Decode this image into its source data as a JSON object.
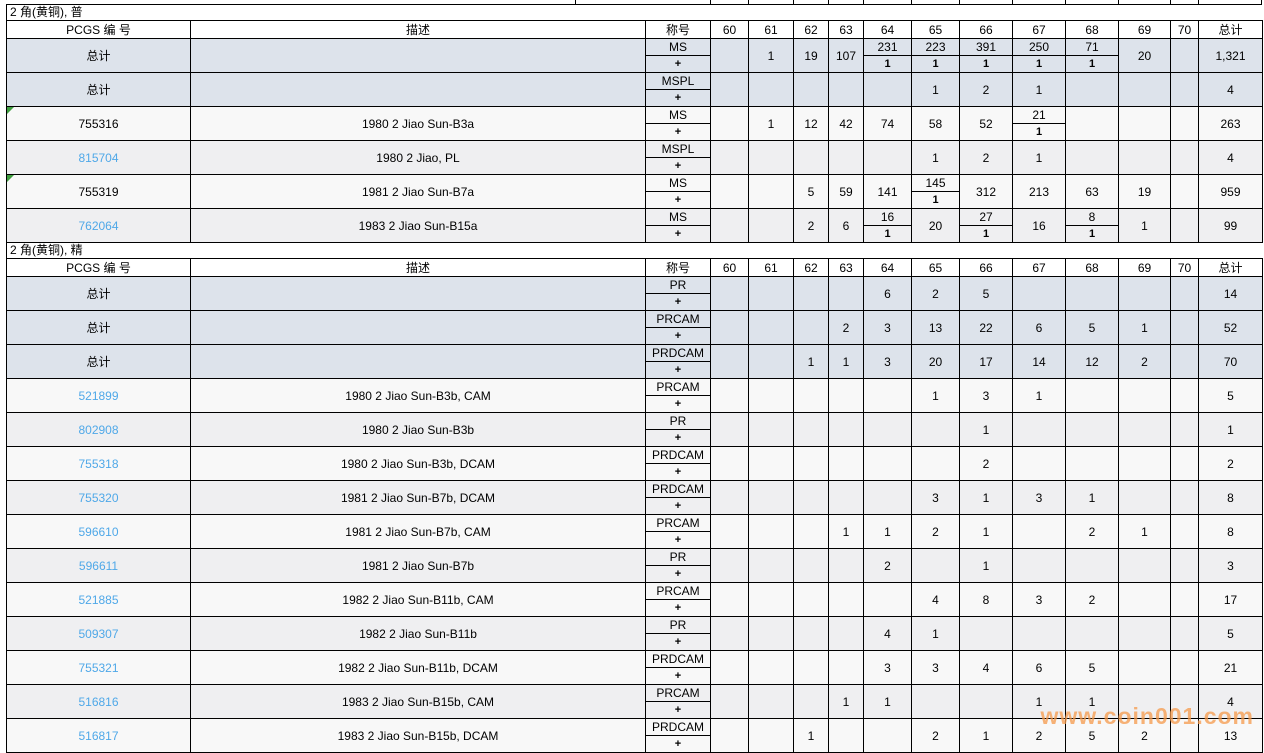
{
  "watermark": "www.coin001.com",
  "colors": {
    "link": "#4fa8e8",
    "summary_row_bg": "#dde3eb",
    "row_light_bg": "#f8f8f8",
    "row_dark_bg": "#efeff1",
    "note_marker": "#3f9e3f",
    "watermark": "#f69a4b"
  },
  "columns": {
    "pcgs": "PCGS 编 号",
    "desc": "描述",
    "designation": "称号",
    "grades": [
      "60",
      "61",
      "62",
      "63",
      "64",
      "65",
      "66",
      "67",
      "68",
      "69",
      "70"
    ],
    "total": "总计"
  },
  "plus_label": "+",
  "sections": [
    {
      "title": "2 角(黄铜), 普",
      "rows": [
        {
          "pcgs": "总计",
          "link": false,
          "marker": false,
          "shade": "summary",
          "desc": "",
          "designation": "MS",
          "cells": {
            "61": "1",
            "62": "19",
            "63": "107",
            "64": [
              "231",
              "1"
            ],
            "65": [
              "223",
              "1"
            ],
            "66": [
              "391",
              "1"
            ],
            "67": [
              "250",
              "1"
            ],
            "68": [
              "71",
              "1"
            ],
            "69": "20"
          },
          "total": "1,321"
        },
        {
          "pcgs": "总计",
          "link": false,
          "marker": false,
          "shade": "summary",
          "desc": "",
          "designation": "MSPL",
          "cells": {
            "65": "1",
            "66": "2",
            "67": "1"
          },
          "total": "4"
        },
        {
          "pcgs": "755316",
          "link": false,
          "marker": true,
          "shade": "light",
          "desc": "1980 2 Jiao Sun-B3a",
          "designation": "MS",
          "cells": {
            "61": "1",
            "62": "12",
            "63": "42",
            "64": "74",
            "65": "58",
            "66": "52",
            "67": [
              "21",
              "1"
            ]
          },
          "total": "263"
        },
        {
          "pcgs": "815704",
          "link": true,
          "marker": false,
          "shade": "dark",
          "desc": "1980 2 Jiao, PL",
          "designation": "MSPL",
          "cells": {
            "65": "1",
            "66": "2",
            "67": "1"
          },
          "total": "4"
        },
        {
          "pcgs": "755319",
          "link": false,
          "marker": true,
          "shade": "light",
          "desc": "1981 2 Jiao Sun-B7a",
          "designation": "MS",
          "cells": {
            "62": "5",
            "63": "59",
            "64": "141",
            "65": [
              "145",
              "1"
            ],
            "66": "312",
            "67": "213",
            "68": "63",
            "69": "19"
          },
          "total": "959"
        },
        {
          "pcgs": "762064",
          "link": true,
          "marker": false,
          "shade": "dark",
          "desc": "1983 2 Jiao Sun-B15a",
          "designation": "MS",
          "cells": {
            "62": "2",
            "63": "6",
            "64": [
              "16",
              "1"
            ],
            "65": "20",
            "66": [
              "27",
              "1"
            ],
            "67": "16",
            "68": [
              "8",
              "1"
            ],
            "69": "1"
          },
          "total": "99"
        }
      ]
    },
    {
      "title": "2 角(黄铜), 精",
      "rows": [
        {
          "pcgs": "总计",
          "link": false,
          "marker": false,
          "shade": "summary",
          "desc": "",
          "designation": "PR",
          "cells": {
            "64": "6",
            "65": "2",
            "66": "5"
          },
          "total": "14"
        },
        {
          "pcgs": "总计",
          "link": false,
          "marker": false,
          "shade": "summary",
          "desc": "",
          "designation": "PRCAM",
          "cells": {
            "63": "2",
            "64": "3",
            "65": "13",
            "66": "22",
            "67": "6",
            "68": "5",
            "69": "1"
          },
          "total": "52"
        },
        {
          "pcgs": "总计",
          "link": false,
          "marker": false,
          "shade": "summary",
          "desc": "",
          "designation": "PRDCAM",
          "cells": {
            "62": "1",
            "63": "1",
            "64": "3",
            "65": "20",
            "66": "17",
            "67": "14",
            "68": "12",
            "69": "2"
          },
          "total": "70"
        },
        {
          "pcgs": "521899",
          "link": true,
          "marker": false,
          "shade": "light",
          "desc": "1980 2 Jiao Sun-B3b, CAM",
          "designation": "PRCAM",
          "cells": {
            "65": "1",
            "66": "3",
            "67": "1"
          },
          "total": "5"
        },
        {
          "pcgs": "802908",
          "link": true,
          "marker": false,
          "shade": "dark",
          "desc": "1980 2 Jiao Sun-B3b",
          "designation": "PR",
          "cells": {
            "66": "1"
          },
          "total": "1"
        },
        {
          "pcgs": "755318",
          "link": true,
          "marker": false,
          "shade": "light",
          "desc": "1980 2 Jiao Sun-B3b, DCAM",
          "designation": "PRDCAM",
          "cells": {
            "66": "2"
          },
          "total": "2"
        },
        {
          "pcgs": "755320",
          "link": true,
          "marker": false,
          "shade": "dark",
          "desc": "1981 2 Jiao Sun-B7b, DCAM",
          "designation": "PRDCAM",
          "cells": {
            "65": "3",
            "66": "1",
            "67": "3",
            "68": "1"
          },
          "total": "8"
        },
        {
          "pcgs": "596610",
          "link": true,
          "marker": false,
          "shade": "light",
          "desc": "1981 2 Jiao Sun-B7b, CAM",
          "designation": "PRCAM",
          "cells": {
            "63": "1",
            "64": "1",
            "65": "2",
            "66": "1",
            "68": "2",
            "69": "1"
          },
          "total": "8"
        },
        {
          "pcgs": "596611",
          "link": true,
          "marker": false,
          "shade": "dark",
          "desc": "1981 2 Jiao Sun-B7b",
          "designation": "PR",
          "cells": {
            "64": "2",
            "66": "1"
          },
          "total": "3"
        },
        {
          "pcgs": "521885",
          "link": true,
          "marker": false,
          "shade": "light",
          "desc": "1982 2 Jiao Sun-B11b, CAM",
          "designation": "PRCAM",
          "cells": {
            "65": "4",
            "66": "8",
            "67": "3",
            "68": "2"
          },
          "total": "17"
        },
        {
          "pcgs": "509307",
          "link": true,
          "marker": false,
          "shade": "dark",
          "desc": "1982 2 Jiao Sun-B11b",
          "designation": "PR",
          "cells": {
            "64": "4",
            "65": "1"
          },
          "total": "5"
        },
        {
          "pcgs": "755321",
          "link": true,
          "marker": false,
          "shade": "light",
          "desc": "1982 2 Jiao Sun-B11b, DCAM",
          "designation": "PRDCAM",
          "cells": {
            "64": "3",
            "65": "3",
            "66": "4",
            "67": "6",
            "68": "5"
          },
          "total": "21"
        },
        {
          "pcgs": "516816",
          "link": true,
          "marker": false,
          "shade": "dark",
          "desc": "1983 2 Jiao Sun-B15b, CAM",
          "designation": "PRCAM",
          "cells": {
            "63": "1",
            "64": "1",
            "67": "1",
            "68": "1"
          },
          "total": "4"
        },
        {
          "pcgs": "516817",
          "link": true,
          "marker": false,
          "shade": "light",
          "desc": "1983 2 Jiao Sun-B15b, DCAM",
          "designation": "PRDCAM",
          "cells": {
            "62": "1",
            "65": "2",
            "66": "1",
            "67": "2",
            "68": "5",
            "69": "2"
          },
          "total": "13"
        }
      ]
    }
  ]
}
